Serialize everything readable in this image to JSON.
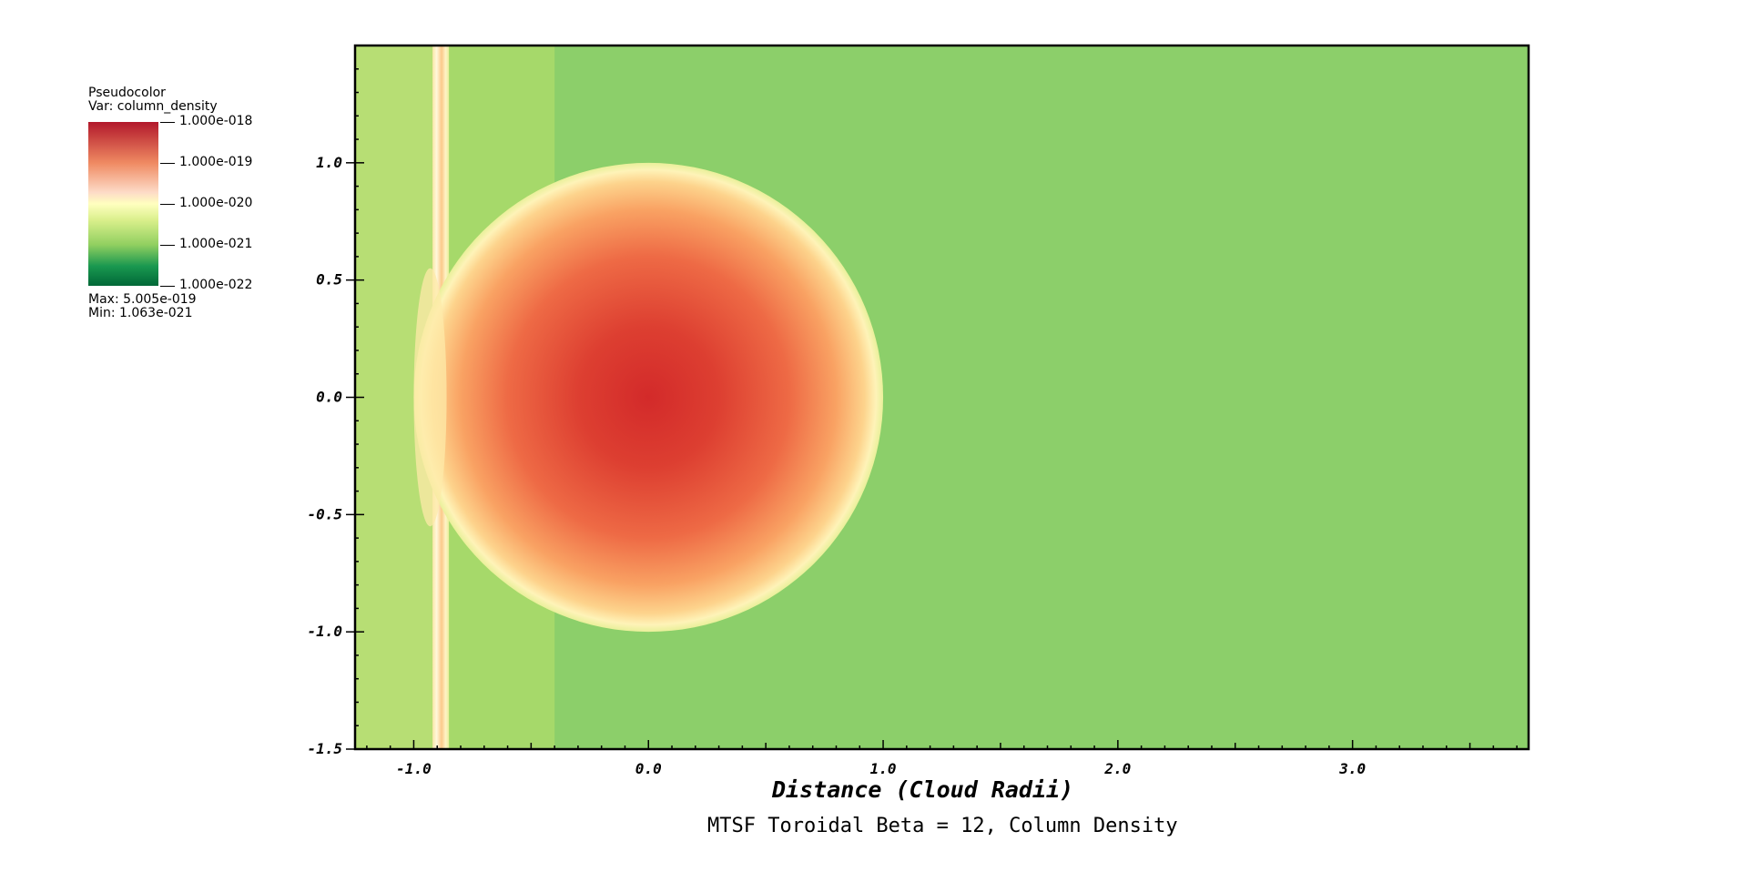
{
  "legend": {
    "plot_type": "Pseudocolor",
    "var_label": "Var: column_density",
    "ticks": [
      "1.000e-018",
      "1.000e-019",
      "1.000e-020",
      "1.000e-021",
      "1.000e-022"
    ],
    "max_label": "Max:  5.005e-019",
    "min_label": "Min:  1.063e-021",
    "colormap": [
      "#b2182b",
      "#ef8a62",
      "#fddbc7",
      "#ffffbf",
      "#d9ef8b",
      "#91cf60",
      "#1a9850",
      "#006837"
    ]
  },
  "colors": {
    "background_green": "#8ccf6a",
    "left_strip_green": "#b7de74",
    "mid_strip_green": "#a6d96a",
    "cloud_core": "#d7302a",
    "cloud_edge": "#fdf4b8"
  },
  "chart_data": {
    "type": "heatmap",
    "title": "MTSF Toroidal Beta = 12, Column Density",
    "xlabel": "Distance (Cloud Radii)",
    "ylabel": "",
    "xlim": [
      -1.25,
      3.75
    ],
    "ylim": [
      -1.5,
      1.5
    ],
    "x_ticks": [
      "-1.0",
      "0.0",
      "1.0",
      "2.0",
      "3.0"
    ],
    "x_tick_values": [
      -1.0,
      0.0,
      1.0,
      2.0,
      3.0
    ],
    "y_ticks": [
      "1.0",
      "0.5",
      "0.0",
      "-0.5",
      "-1.0",
      "-1.5"
    ],
    "y_tick_values": [
      1.0,
      0.5,
      0.0,
      -0.5,
      -1.0,
      -1.5
    ],
    "variable": "column_density",
    "value_max": 5.005e-19,
    "value_min": 1.063e-21,
    "color_scale": "log",
    "color_range": [
      1e-22,
      1e-18
    ],
    "features": {
      "cloud_center": [
        0.0,
        0.0
      ],
      "cloud_radius": 1.0,
      "shock_strip_x": [
        -0.92,
        -0.85
      ],
      "swept_region_x": [
        -1.25,
        -0.4
      ]
    }
  }
}
